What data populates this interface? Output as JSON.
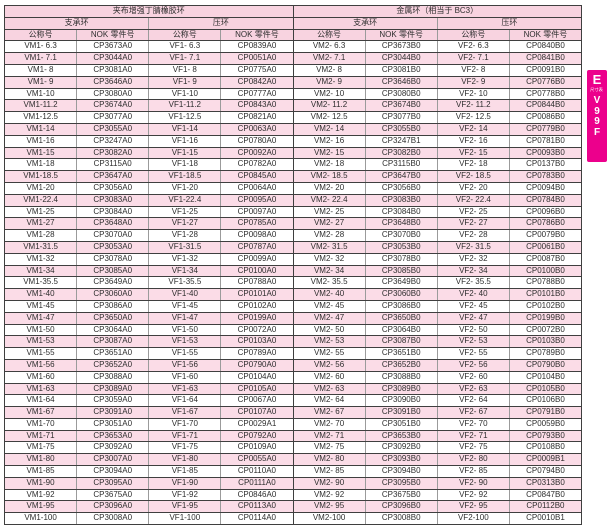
{
  "table": {
    "group_headers": [
      "夹布增强丁腈橡胶环",
      "金属环（相当于 BC3）"
    ],
    "sub_headers": [
      "支承环",
      "压环",
      "支承环",
      "压环"
    ],
    "col_headers": [
      "公称号",
      "NOK 零件号",
      "公称号",
      "NOK 零件号",
      "公称号",
      "NOK 零件号",
      "公称号",
      "NOK 零件号"
    ],
    "rows": [
      [
        "VM1- 6.3",
        "CP3673A0",
        "VF1- 6.3",
        "CP0839A0",
        "VM2- 6.3",
        "CP3673B0",
        "VF2- 6.3",
        "CP0840B0"
      ],
      [
        "VM1- 7.1",
        "CP3044A0",
        "VF1- 7.1",
        "CP0051A0",
        "VM2- 7.1",
        "CP3044B0",
        "VF2- 7.1",
        "CP0841B0"
      ],
      [
        "VM1- 8",
        "CP3081A0",
        "VF1- 8",
        "CP0775A0",
        "VM2- 8",
        "CP3081B0",
        "VF2- 8",
        "CP0091B0"
      ],
      [
        "VM1- 9",
        "CP3646A0",
        "VF1- 9",
        "CP0842A0",
        "VM2- 9",
        "CP3646B0",
        "VF2- 9",
        "CP0776B0"
      ],
      [
        "VM1-10",
        "CP3080A0",
        "VF1-10",
        "CP0777A0",
        "VM2- 10",
        "CP3080B0",
        "VF2- 10",
        "CP0778B0"
      ],
      [
        "VM1-11.2",
        "CP3674A0",
        "VF1-11.2",
        "CP0843A0",
        "VM2- 11.2",
        "CP3674B0",
        "VF2- 11.2",
        "CP0844B0"
      ],
      [
        "VM1-12.5",
        "CP3077A0",
        "VF1-12.5",
        "CP0821A0",
        "VM2- 12.5",
        "CP3077B0",
        "VF2- 12.5",
        "CP0086B0"
      ],
      [
        "VM1-14",
        "CP3055A0",
        "VF1-14",
        "CP0063A0",
        "VM2- 14",
        "CP3055B0",
        "VF2- 14",
        "CP0779B0"
      ],
      [
        "VM1-16",
        "CP3247A0",
        "VF1-16",
        "CP0780A0",
        "VM2- 16",
        "CP3247B1",
        "VF2- 16",
        "CP0781B0"
      ],
      [
        "VM1-15",
        "CP3082A0",
        "VF1-15",
        "CP0092A0",
        "VM2- 15",
        "CP3082B0",
        "VF2- 15",
        "CP0093B0"
      ],
      [
        "VM1-18",
        "CP3115A0",
        "VF1-18",
        "CP0782A0",
        "VM2- 18",
        "CP3115B0",
        "VF2- 18",
        "CP0137B0"
      ],
      [
        "VM1-18.5",
        "CP3647A0",
        "VF1-18.5",
        "CP0845A0",
        "VM2- 18.5",
        "CP3647B0",
        "VF2- 18.5",
        "CP0783B0"
      ],
      [
        "VM1-20",
        "CP3056A0",
        "VF1-20",
        "CP0064A0",
        "VM2- 20",
        "CP3056B0",
        "VF2- 20",
        "CP0094B0"
      ],
      [
        "VM1-22.4",
        "CP3083A0",
        "VF1-22.4",
        "CP0095A0",
        "VM2- 22.4",
        "CP3083B0",
        "VF2- 22.4",
        "CP0784B0"
      ],
      [
        "VM1-25",
        "CP3084A0",
        "VF1-25",
        "CP0097A0",
        "VM2- 25",
        "CP3084B0",
        "VF2- 25",
        "CP0096B0"
      ],
      [
        "VM1-27",
        "CP3648A0",
        "VF1-27",
        "CP0785A0",
        "VM2- 27",
        "CP3648B0",
        "VF2- 27",
        "CP0786B0"
      ],
      [
        "VM1-28",
        "CP3070A0",
        "VF1-28",
        "CP0098A0",
        "VM2- 28",
        "CP3070B0",
        "VF2- 28",
        "CP0079B0"
      ],
      [
        "VM1-31.5",
        "CP3053A0",
        "VF1-31.5",
        "CP0787A0",
        "VM2- 31.5",
        "CP3053B0",
        "VF2- 31.5",
        "CP0061B0"
      ],
      [
        "VM1-32",
        "CP3078A0",
        "VF1-32",
        "CP0099A0",
        "VM2- 32",
        "CP3078B0",
        "VF2- 32",
        "CP0087B0"
      ],
      [
        "VM1-34",
        "CP3085A0",
        "VF1-34",
        "CP0100A0",
        "VM2- 34",
        "CP3085B0",
        "VF2- 34",
        "CP0100B0"
      ],
      [
        "VM1-35.5",
        "CP3649A0",
        "VF1-35.5",
        "CP0788A0",
        "VM2- 35.5",
        "CP3649B0",
        "VF2- 35.5",
        "CP0788B0"
      ],
      [
        "VM1-40",
        "CP3060A0",
        "VF1-40",
        "CP0101A0",
        "VM2- 40",
        "CP3060B0",
        "VF2- 40",
        "CP0101B0"
      ],
      [
        "VM1-45",
        "CP3086A0",
        "VF1-45",
        "CP0102A0",
        "VM2- 45",
        "CP3086B0",
        "VF2- 45",
        "CP0102B0"
      ],
      [
        "VM1-47",
        "CP3650A0",
        "VF1-47",
        "CP0199A0",
        "VM2- 47",
        "CP3650B0",
        "VF2- 47",
        "CP0199B0"
      ],
      [
        "VM1-50",
        "CP3064A0",
        "VF1-50",
        "CP0072A0",
        "VM2- 50",
        "CP3064B0",
        "VF2- 50",
        "CP0072B0"
      ],
      [
        "VM1-53",
        "CP3087A0",
        "VF1-53",
        "CP0103A0",
        "VM2- 53",
        "CP3087B0",
        "VF2- 53",
        "CP0103B0"
      ],
      [
        "VM1-55",
        "CP3651A0",
        "VF1-55",
        "CP0789A0",
        "VM2- 55",
        "CP3651B0",
        "VF2- 55",
        "CP0789B0"
      ],
      [
        "VM1-56",
        "CP3652A0",
        "VF1-56",
        "CP0790A0",
        "VM2- 56",
        "CP3652B0",
        "VF2- 56",
        "CP0790B0"
      ],
      [
        "VM1-60",
        "CP3088A0",
        "VF1-60",
        "CP0104A0",
        "VM2- 60",
        "CP3088B0",
        "VF2- 60",
        "CP0104B0"
      ],
      [
        "VM1-63",
        "CP3089A0",
        "VF1-63",
        "CP0105A0",
        "VM2- 63",
        "CP3089B0",
        "VF2- 63",
        "CP0105B0"
      ],
      [
        "VM1-64",
        "CP3059A0",
        "VF1-64",
        "CP0067A0",
        "VM2- 64",
        "CP3090B0",
        "VF2- 64",
        "CP0106B0"
      ],
      [
        "VM1-67",
        "CP3091A0",
        "VF1-67",
        "CP0107A0",
        "VM2- 67",
        "CP3091B0",
        "VF2- 67",
        "CP0791B0"
      ],
      [
        "VM1-70",
        "CP3051A0",
        "VF1-70",
        "CP0029A1",
        "VM2- 70",
        "CP3051B0",
        "VF2- 70",
        "CP0059B0"
      ],
      [
        "VM1-71",
        "CP3653A0",
        "VF1-71",
        "CP0792A0",
        "VM2- 71",
        "CP3653B0",
        "VF2- 71",
        "CP0793B0"
      ],
      [
        "VM1-75",
        "CP3092A0",
        "VF1-75",
        "CP0109A0",
        "VM2- 75",
        "CP3092B0",
        "VF2- 75",
        "CP0108B0"
      ],
      [
        "VM1-80",
        "CP3007A0",
        "VF1-80",
        "CP0055A0",
        "VM2- 80",
        "CP3093B0",
        "VF2- 80",
        "CP0009B1"
      ],
      [
        "VM1-85",
        "CP3094A0",
        "VF1-85",
        "CP0110A0",
        "VM2- 85",
        "CP3094B0",
        "VF2- 85",
        "CP0794B0"
      ],
      [
        "VM1-90",
        "CP3095A0",
        "VF1-90",
        "CP0111A0",
        "VM2- 90",
        "CP3095B0",
        "VF2- 90",
        "CP0313B0"
      ],
      [
        "VM1-92",
        "CP3675A0",
        "VF1-92",
        "CP0846A0",
        "VM2- 92",
        "CP3675B0",
        "VF2- 92",
        "CP0847B0"
      ],
      [
        "VM1-95",
        "CP3096A0",
        "VF1-95",
        "CP0113A0",
        "VM2- 95",
        "CP3096B0",
        "VF2- 95",
        "CP0112B0"
      ],
      [
        "VM1-100",
        "CP3008A0",
        "VF1-100",
        "CP0114A0",
        "VM2-100",
        "CP3008B0",
        "VF2-100",
        "CP0010B1"
      ]
    ]
  },
  "side_tab": {
    "letter": "E",
    "small_label": "尺寸表",
    "code_chars": [
      "V",
      "9",
      "9",
      "F"
    ],
    "bg_color": "#ec008c"
  },
  "colors": {
    "header_bg": "#f8d3e0",
    "row_alt_bg": "#fbdce7",
    "border_dark": "#3f3f3f",
    "border_light": "#9b9b9b",
    "accent_magenta": "#ec008c"
  }
}
